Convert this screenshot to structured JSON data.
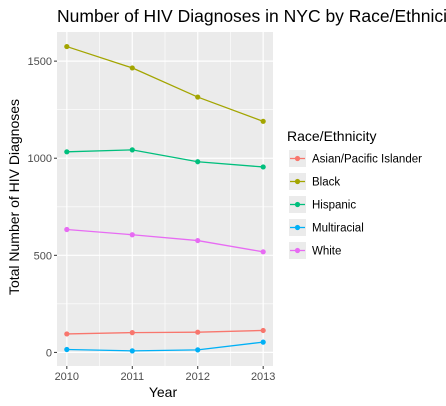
{
  "chart_data": {
    "type": "line",
    "title": "Number of HIV Diagnoses in NYC by Race/Ethnicity",
    "xlabel": "Year",
    "ylabel": "Total Number of HIV Diagnoses",
    "x": [
      2010,
      2011,
      2012,
      2013
    ],
    "x_tick_labels": [
      "2010",
      "2011",
      "2012",
      "2013"
    ],
    "y_ticks": [
      0,
      500,
      1000,
      1500
    ],
    "y_tick_labels": [
      "0",
      "500",
      "1000",
      "1500"
    ],
    "ylim": [
      -70,
      1650
    ],
    "grid": true,
    "legend_title": "Race/Ethnicity",
    "legend_position": "right",
    "series": [
      {
        "name": "Asian/Pacific Islander",
        "color": "#F8766D",
        "values": [
          95,
          102,
          104,
          113
        ]
      },
      {
        "name": "Black",
        "color": "#A3A500",
        "values": [
          1575,
          1465,
          1315,
          1190
        ]
      },
      {
        "name": "Hispanic",
        "color": "#00BF7D",
        "values": [
          1033,
          1043,
          982,
          955
        ]
      },
      {
        "name": "Multiracial",
        "color": "#00B0F6",
        "values": [
          15,
          8,
          13,
          53
        ]
      },
      {
        "name": "White",
        "color": "#E76BF3",
        "values": [
          633,
          606,
          576,
          518
        ]
      }
    ]
  }
}
